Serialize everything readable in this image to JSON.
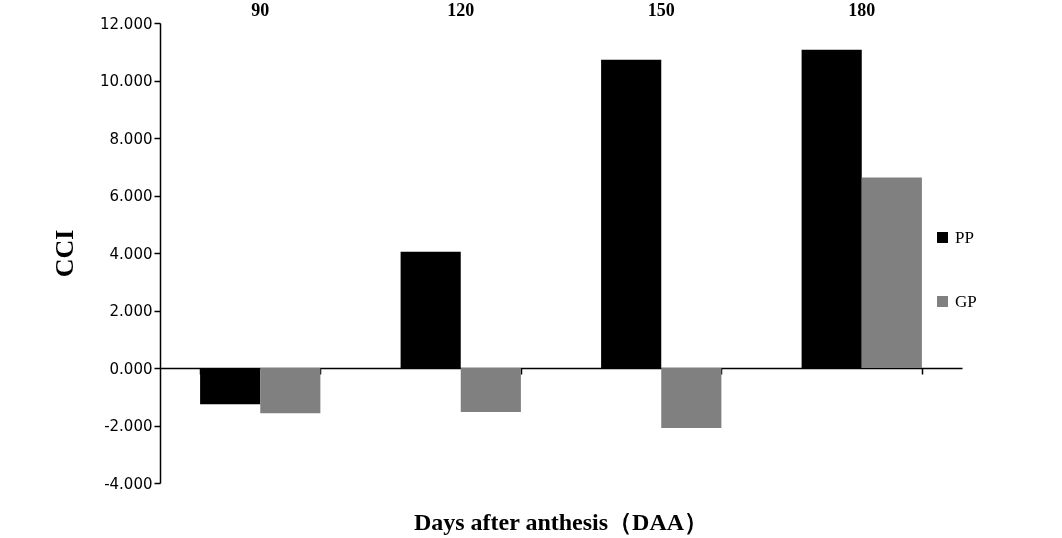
{
  "chart_data": {
    "type": "bar",
    "xlabel": "Days after anthesis（DAA）",
    "ylabel": "CCI",
    "categories": [
      "90",
      "120",
      "150",
      "180"
    ],
    "series": [
      {
        "name": "PP",
        "color": "#000000",
        "values": [
          -1.26,
          4.04,
          10.72,
          11.07
        ]
      },
      {
        "name": "GP",
        "color": "#808080",
        "values": [
          -1.57,
          -1.53,
          -2.09,
          6.63
        ]
      }
    ],
    "ylim": [
      -4,
      12
    ],
    "yticks": [
      {
        "value": -4,
        "label": "-4.000"
      },
      {
        "value": -2,
        "label": "-2.000"
      },
      {
        "value": 0,
        "label": "0.000"
      },
      {
        "value": 2,
        "label": "2.000"
      },
      {
        "value": 4,
        "label": "4.000"
      },
      {
        "value": 6,
        "label": "6.000"
      },
      {
        "value": 8,
        "label": "8.000"
      },
      {
        "value": 10,
        "label": "10.000"
      },
      {
        "value": 12,
        "label": "12.000"
      }
    ],
    "legend": "right"
  }
}
